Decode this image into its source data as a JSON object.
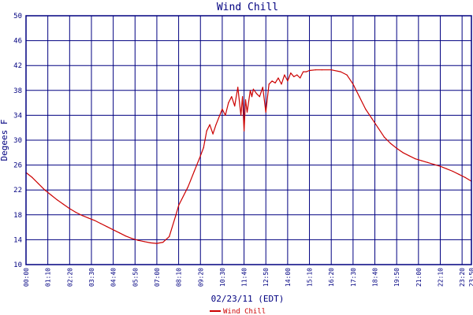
{
  "chart_data": {
    "type": "line",
    "title": "Wind Chill",
    "xlabel": "02/23/11 (EDT)",
    "ylabel": "Degees F",
    "ylim": [
      10,
      50
    ],
    "yticks": [
      10,
      14,
      18,
      22,
      26,
      30,
      34,
      38,
      42,
      46,
      50
    ],
    "xticks": [
      "00:00",
      "01:10",
      "02:20",
      "03:30",
      "04:40",
      "05:50",
      "07:00",
      "08:10",
      "09:20",
      "10:30",
      "11:40",
      "12:50",
      "14:00",
      "15:10",
      "16:20",
      "17:30",
      "18:40",
      "19:50",
      "21:00",
      "22:10",
      "23:20",
      "23:50"
    ],
    "grid": true,
    "colors": {
      "series": "#cc0000",
      "grid": "#000080",
      "text": "#000080"
    },
    "series": [
      {
        "name": "Wind Chill",
        "x": [
          "00:00",
          "00:20",
          "00:40",
          "01:00",
          "01:20",
          "01:40",
          "02:00",
          "02:20",
          "02:40",
          "03:00",
          "03:20",
          "03:40",
          "04:00",
          "04:20",
          "04:40",
          "05:00",
          "05:20",
          "05:40",
          "06:00",
          "06:20",
          "06:40",
          "07:00",
          "07:20",
          "07:40",
          "08:00",
          "08:10",
          "08:40",
          "09:00",
          "09:20",
          "09:30",
          "09:40",
          "09:50",
          "10:00",
          "10:10",
          "10:30",
          "10:40",
          "10:50",
          "11:00",
          "11:10",
          "11:20",
          "11:30",
          "11:35",
          "11:40",
          "11:45",
          "11:50",
          "12:00",
          "12:05",
          "12:10",
          "12:20",
          "12:30",
          "12:40",
          "12:50",
          "13:00",
          "13:10",
          "13:20",
          "13:30",
          "13:40",
          "13:50",
          "14:00",
          "14:10",
          "14:20",
          "14:30",
          "14:40",
          "14:50",
          "15:00",
          "15:10",
          "15:30",
          "15:50",
          "16:20",
          "16:50",
          "17:10",
          "17:30",
          "17:50",
          "18:10",
          "18:30",
          "18:50",
          "19:10",
          "19:30",
          "19:50",
          "20:10",
          "20:30",
          "20:50",
          "21:10",
          "21:30",
          "21:50",
          "22:10",
          "22:30",
          "22:50",
          "23:10",
          "23:30",
          "23:50"
        ],
        "values": [
          24.8,
          24.0,
          23.0,
          22.0,
          21.2,
          20.4,
          19.7,
          19.0,
          18.4,
          17.9,
          17.5,
          17.1,
          16.6,
          16.1,
          15.6,
          15.1,
          14.6,
          14.2,
          13.9,
          13.7,
          13.5,
          13.4,
          13.6,
          14.5,
          17.8,
          19.5,
          22.5,
          25.0,
          27.5,
          28.8,
          31.5,
          32.5,
          31.0,
          32.5,
          35.0,
          34.0,
          36.0,
          37.0,
          35.5,
          38.5,
          34.0,
          37.0,
          31.5,
          36.5,
          34.5,
          38.0,
          37.0,
          38.2,
          37.5,
          37.0,
          38.5,
          34.5,
          39.0,
          39.5,
          39.2,
          40.0,
          39.0,
          40.5,
          39.5,
          40.8,
          40.2,
          40.5,
          40.0,
          41.0,
          41.0,
          41.2,
          41.3,
          41.3,
          41.3,
          41.0,
          40.5,
          39.0,
          37.0,
          35.0,
          33.5,
          32.0,
          30.5,
          29.5,
          28.7,
          28.0,
          27.5,
          27.0,
          26.7,
          26.4,
          26.1,
          25.8,
          25.4,
          25.0,
          24.5,
          24.0,
          23.4
        ]
      }
    ]
  }
}
